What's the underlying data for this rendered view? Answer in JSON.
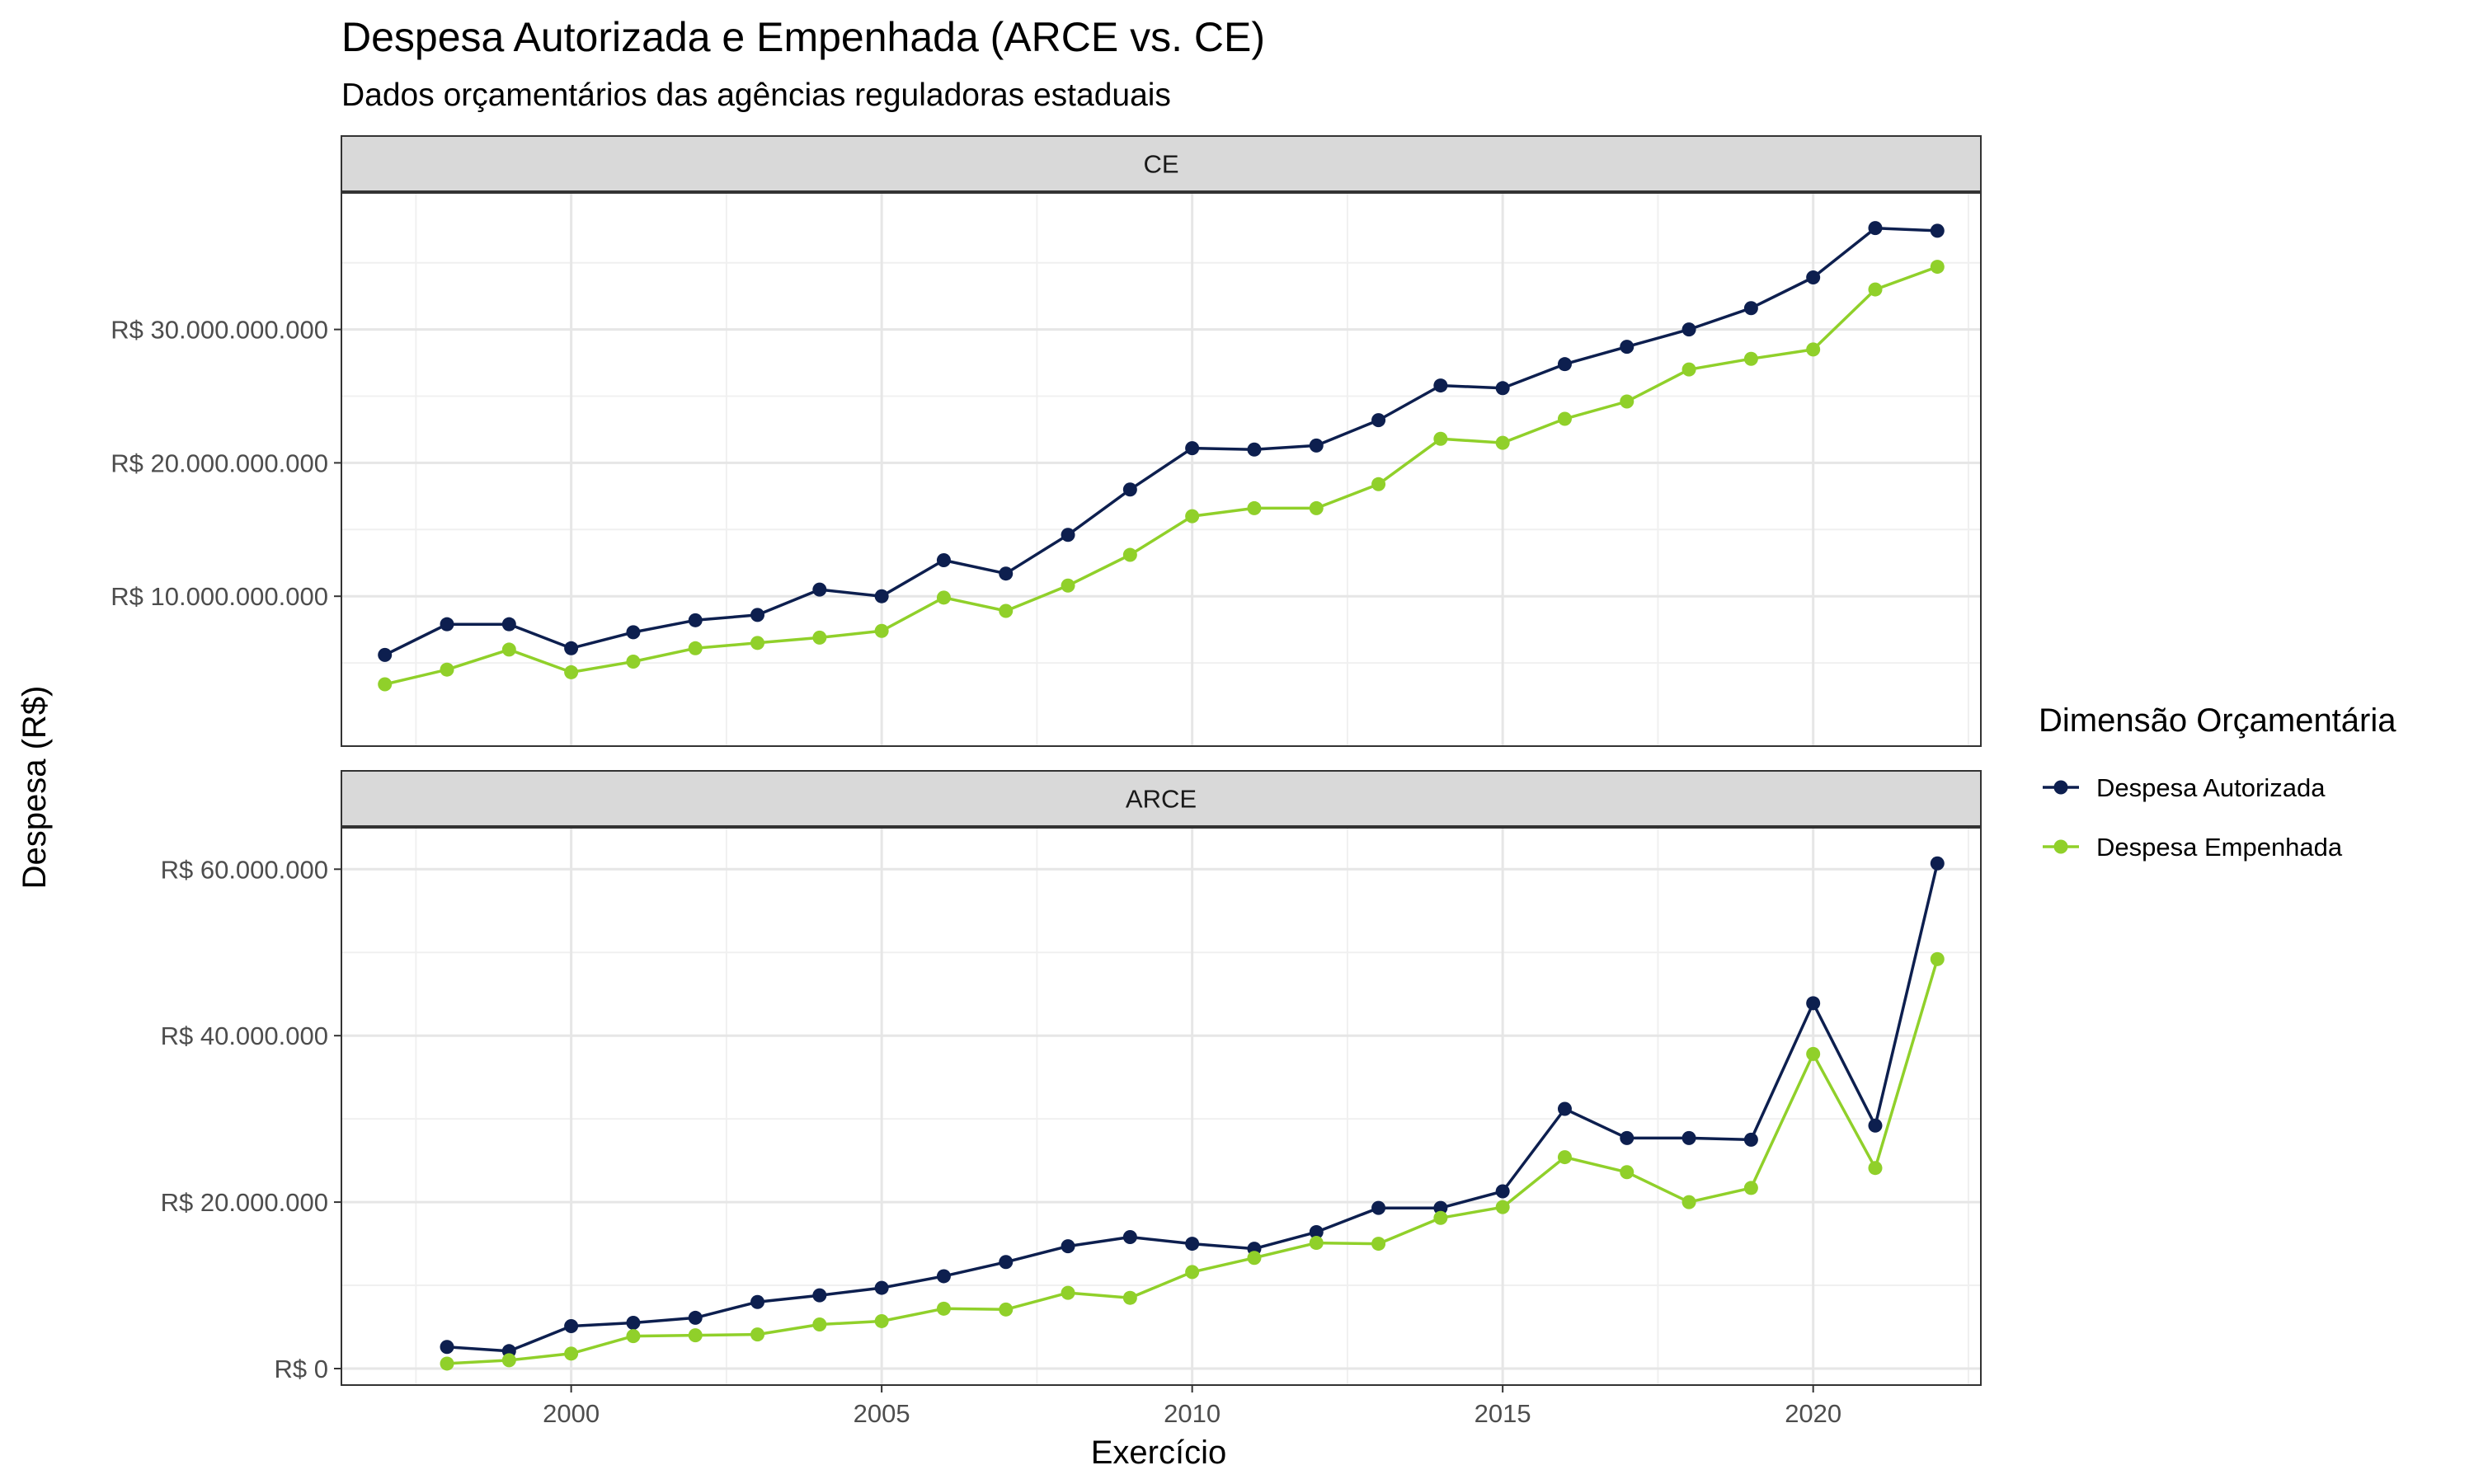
{
  "chart_data": {
    "type": "line",
    "title": "Despesa Autorizada e Empenhada (ARCE vs. CE)",
    "subtitle": "Dados orçamentários das agências reguladoras estaduais",
    "xlabel": "Exercício",
    "ylabel": "Despesa (R$)",
    "xlim": [
      1996.3,
      2022.7
    ],
    "x_ticks": [
      2000,
      2005,
      2010,
      2015,
      2020
    ],
    "x_tick_labels": [
      "2000",
      "2005",
      "2010",
      "2015",
      "2020"
    ],
    "grid": true,
    "legend": {
      "title": "Dimensão Orçamentária",
      "position": "right",
      "entries": [
        {
          "label": "Despesa Autorizada",
          "color": "#0d1f4f"
        },
        {
          "label": "Despesa Empenhada",
          "color": "#90d02a"
        }
      ]
    },
    "panels": [
      {
        "strip": "CE",
        "ylim": [
          0,
          39000000000
        ],
        "y_ticks": [
          10000000000,
          20000000000,
          30000000000
        ],
        "y_tick_labels": [
          "R$ 10.000.000.000",
          "R$ 20.000.000.000",
          "R$ 30.000.000.000"
        ],
        "x": [
          1997,
          1998,
          1999,
          2000,
          2001,
          2002,
          2003,
          2004,
          2005,
          2006,
          2007,
          2008,
          2009,
          2010,
          2011,
          2012,
          2013,
          2014,
          2015,
          2016,
          2017,
          2018,
          2019,
          2020,
          2021,
          2022
        ],
        "series": [
          {
            "name": "Despesa Autorizada",
            "values": [
              5600000000,
              7900000000,
              7900000000,
              6100000000,
              7300000000,
              8200000000,
              8600000000,
              10500000000,
              10000000000,
              12700000000,
              11700000000,
              14600000000,
              18000000000,
              21100000000,
              21000000000,
              21300000000,
              23200000000,
              25800000000,
              25600000000,
              27400000000,
              28700000000,
              30000000000,
              31600000000,
              33900000000,
              37600000000,
              37400000000
            ]
          },
          {
            "name": "Despesa Empenhada",
            "values": [
              3400000000,
              4500000000,
              6000000000,
              4300000000,
              5100000000,
              6100000000,
              6500000000,
              6900000000,
              7400000000,
              9900000000,
              8900000000,
              10800000000,
              13100000000,
              16000000000,
              16600000000,
              16600000000,
              18400000000,
              21800000000,
              21500000000,
              23300000000,
              24600000000,
              27000000000,
              27800000000,
              28500000000,
              33000000000,
              34700000000
            ]
          }
        ]
      },
      {
        "strip": "ARCE",
        "ylim": [
          0,
          63000000
        ],
        "y_ticks": [
          0,
          20000000,
          40000000,
          60000000
        ],
        "y_tick_labels": [
          "R$ 0",
          "R$ 20.000.000",
          "R$ 40.000.000",
          "R$ 60.000.000"
        ],
        "x": [
          1998,
          1999,
          2000,
          2001,
          2002,
          2003,
          2004,
          2005,
          2006,
          2007,
          2008,
          2009,
          2010,
          2011,
          2012,
          2013,
          2014,
          2015,
          2016,
          2017,
          2018,
          2019,
          2020,
          2021,
          2022
        ],
        "series": [
          {
            "name": "Despesa Autorizada",
            "values": [
              2600000,
              2100000,
              5100000,
              5500000,
              6100000,
              8000000,
              8800000,
              9700000,
              11100000,
              12800000,
              14700000,
              15800000,
              15000000,
              14400000,
              16400000,
              19300000,
              19300000,
              21300000,
              31200000,
              27700000,
              27700000,
              27500000,
              43900000,
              29200000,
              60700000
            ]
          },
          {
            "name": "Despesa Empenhada",
            "values": [
              600000,
              1000000,
              1800000,
              3900000,
              4000000,
              4100000,
              5300000,
              5700000,
              7200000,
              7100000,
              9100000,
              8500000,
              11600000,
              13300000,
              15100000,
              15000000,
              18100000,
              19400000,
              25400000,
              23600000,
              20000000,
              21700000,
              37800000,
              24100000,
              49200000
            ]
          }
        ]
      }
    ]
  }
}
